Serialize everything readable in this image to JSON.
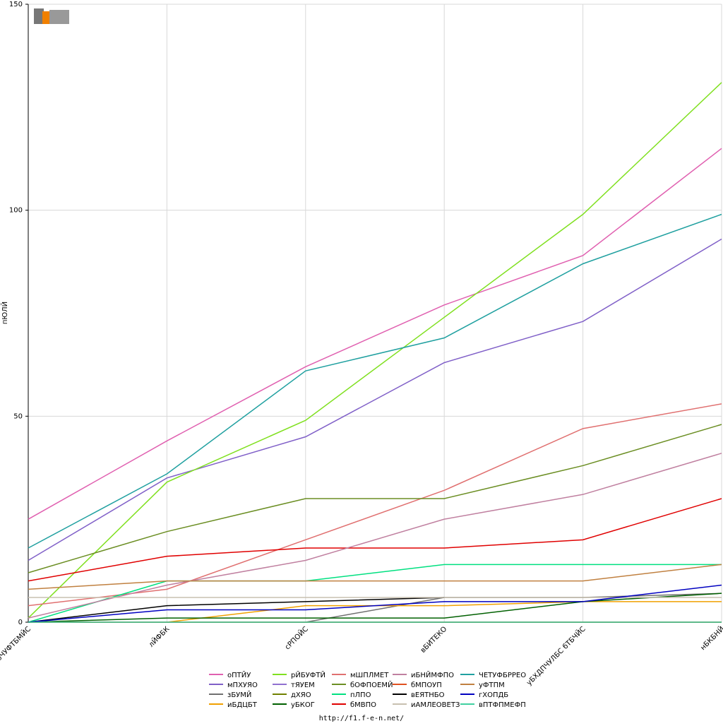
{
  "chart_data": {
    "type": "line",
    "y_label": "пЮЛЙ",
    "footer": "http://f1.f-e-n.net/",
    "categories": [
      "бЧУФТБМЙС",
      "лЙФБК",
      "сРПОЙС",
      "вБИТЕКО",
      "уБХДПЧУЛБС бТБЧЙС",
      "нБКБНЙ"
    ],
    "ylim": [
      0,
      150
    ],
    "yticks": [
      0,
      50,
      100,
      150
    ],
    "grid": true,
    "series": [
      {
        "name": "оПТЙУ",
        "color": "#e060b0",
        "values": [
          25,
          44,
          62,
          77,
          89,
          115
        ]
      },
      {
        "name": "мПХУЯО",
        "color": "#8060c8",
        "values": [
          15,
          35,
          45,
          63,
          73,
          93
        ]
      },
      {
        "name": "зБУМЙ",
        "color": "#707070",
        "values": [
          null,
          null,
          0,
          6,
          6,
          7
        ]
      },
      {
        "name": "иБДЦБТ",
        "color": "#f0a000",
        "values": [
          null,
          0,
          4,
          4,
          5,
          5
        ]
      },
      {
        "name": "рЙБУФТЙ",
        "color": "#80e020",
        "values": [
          1,
          34,
          49,
          74,
          99,
          131
        ]
      },
      {
        "name": "тЯУЕМ",
        "color": "#9070d0",
        "values": [
          0,
          0,
          0,
          0,
          0,
          0
        ]
      },
      {
        "name": "дХЯО",
        "color": "#708000",
        "values": [
          0,
          0,
          0,
          0,
          0,
          0
        ]
      },
      {
        "name": "уБКОГ",
        "color": "#006000",
        "values": [
          0,
          1,
          1,
          1,
          5,
          7
        ]
      },
      {
        "name": "мШПЛМЕТ",
        "color": "#e07070",
        "values": [
          4,
          8,
          20,
          32,
          47,
          53
        ]
      },
      {
        "name": "бОФПОЕМЙ",
        "color": "#6b8e23",
        "values": [
          12,
          22,
          30,
          30,
          38,
          48
        ]
      },
      {
        "name": "пЛПО",
        "color": "#00e080",
        "values": [
          0,
          10,
          10,
          14,
          14,
          14
        ]
      },
      {
        "name": "бМВПО",
        "color": "#e00000",
        "values": [
          10,
          16,
          18,
          18,
          20,
          30
        ]
      },
      {
        "name": "иБНЙМФПО",
        "color": "#c080a0",
        "values": [
          1,
          9,
          15,
          25,
          31,
          41
        ]
      },
      {
        "name": "бМПОУП",
        "color": "#e05020",
        "values": [
          0,
          0,
          0,
          0,
          0,
          0
        ]
      },
      {
        "name": "вЕЯТНБО",
        "color": "#000000",
        "values": [
          0,
          4,
          5,
          6,
          null,
          null
        ]
      },
      {
        "name": "иАМЛЕОВЕТЗ",
        "color": "#c8c0b0",
        "values": [
          6,
          6,
          6,
          6,
          6,
          6
        ]
      },
      {
        "name": "ЧЕТУФБРРЕО",
        "color": "#20a0a0",
        "values": [
          18,
          36,
          61,
          69,
          87,
          99
        ]
      },
      {
        "name": "уФТПМ",
        "color": "#c08040",
        "values": [
          8,
          10,
          10,
          10,
          10,
          14
        ]
      },
      {
        "name": "гХОПДБ",
        "color": "#0000c0",
        "values": [
          0,
          3,
          3,
          5,
          5,
          9
        ]
      },
      {
        "name": "вПТФПМЕФП",
        "color": "#40d0a0",
        "values": [
          0,
          0,
          0,
          0,
          0,
          0
        ]
      }
    ]
  }
}
